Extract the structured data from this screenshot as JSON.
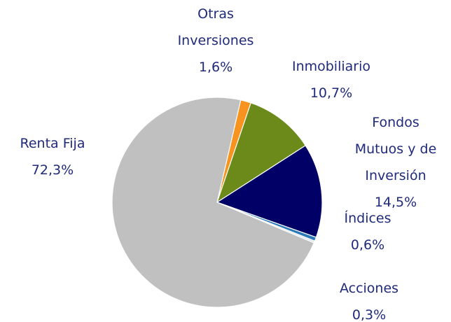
{
  "chart_data": {
    "type": "pie",
    "categories": [
      "Otras Inversiones",
      "Inmobiliario",
      "Fondos Mutuos y de Inversión",
      "Índices",
      "Acciones",
      "Renta Fija"
    ],
    "values": [
      1.6,
      10.7,
      14.5,
      0.6,
      0.3,
      72.3
    ],
    "value_labels": [
      "1,6%",
      "10,7%",
      "14,5%",
      "0,6%",
      "0,3%",
      "72,3%"
    ],
    "colors": [
      "#f7931e",
      "#6b8a1a",
      "#000066",
      "#2a7ab8",
      "#dbe3f0",
      "#c0c0c0"
    ]
  }
}
